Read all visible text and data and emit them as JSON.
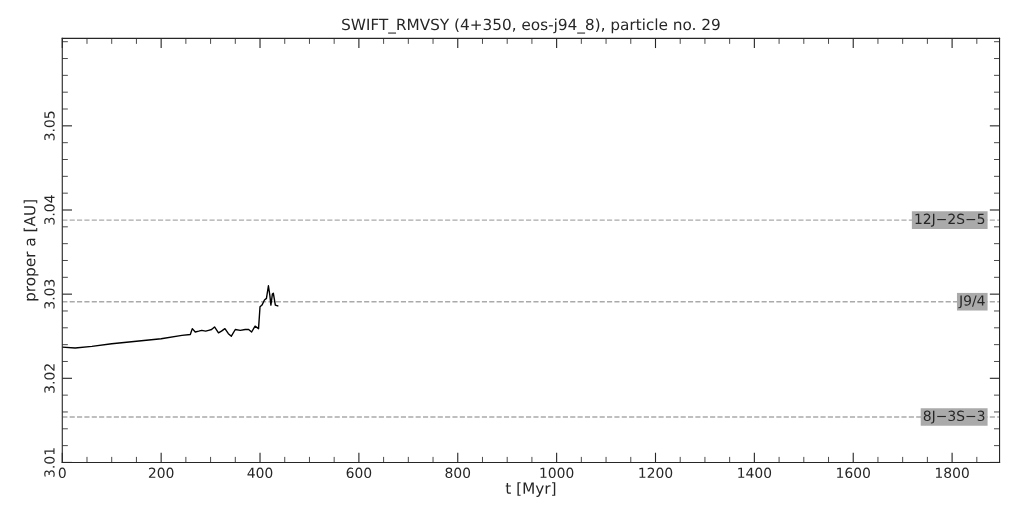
{
  "chart_data": {
    "type": "line",
    "title": "SWIFT_RMVSY (4+350, eos-j94_8), particle no. 29",
    "xlabel": "t [Myr]",
    "ylabel": "proper a [AU]",
    "series": [
      {
        "color": "#000000",
        "x": [
          0,
          26,
          60,
          100,
          150,
          200,
          242,
          259,
          263,
          269,
          276,
          282,
          290,
          296,
          302,
          308,
          316,
          322,
          329,
          336,
          342,
          350,
          360,
          370,
          377,
          383,
          390,
          397,
          400,
          404,
          409,
          413,
          417,
          420,
          422,
          425,
          427,
          431,
          436
        ],
        "values": [
          3.0237,
          3.0236,
          3.0238,
          3.0241,
          3.0244,
          3.0247,
          3.0251,
          3.0252,
          3.0259,
          3.0255,
          3.0256,
          3.0257,
          3.0256,
          3.0257,
          3.0258,
          3.0261,
          3.0254,
          3.0256,
          3.0259,
          3.0253,
          3.025,
          3.0258,
          3.0257,
          3.0258,
          3.0258,
          3.0255,
          3.0262,
          3.0259,
          3.0285,
          3.0287,
          3.0293,
          3.0295,
          3.031,
          3.0298,
          3.0287,
          3.03,
          3.0301,
          3.0287,
          3.0286
        ]
      }
    ],
    "xlim": [
      0,
      1896
    ],
    "ylim": [
      3.01,
      3.0604
    ],
    "xticks": [
      0,
      200,
      400,
      600,
      800,
      1000,
      1200,
      1400,
      1600,
      1800
    ],
    "yticks": [
      3.01,
      3.02,
      3.03,
      3.04,
      3.05
    ],
    "ref_lines": [
      {
        "axis": "y",
        "value": 3.0388,
        "label": "12J−2S−5",
        "color": "#aaaaaa",
        "line_style": "dashed"
      },
      {
        "axis": "y",
        "value": 3.0291,
        "label": "J9/4",
        "color": "#aaaaaa",
        "line_style": "dashed"
      },
      {
        "axis": "y",
        "value": 3.0154,
        "label": "8J−3S−3",
        "color": "#aaaaaa",
        "line_style": "dashed"
      }
    ],
    "grid": false,
    "legend": false,
    "marker": "none",
    "line_style": "solid"
  }
}
